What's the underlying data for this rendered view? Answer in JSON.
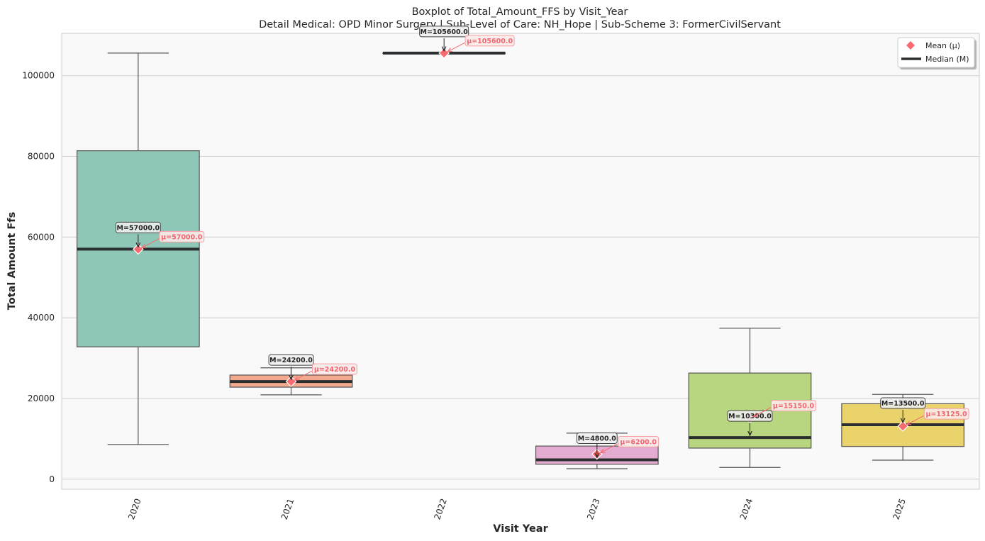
{
  "chart_data": {
    "type": "box",
    "title": "Boxplot of Total_Amount_FFS by Visit_Year",
    "subtitle": "Detail Medical: OPD Minor Surgery | Sub-Level of Care: NH_Hope | Sub-Scheme 3: FormerCivilServant",
    "xlabel": "Visit Year",
    "ylabel": "Total Amount Ffs",
    "ylim": [
      -2500,
      110500
    ],
    "yticks": [
      0,
      20000,
      40000,
      60000,
      80000,
      100000
    ],
    "ytick_labels": [
      "0",
      "20000",
      "40000",
      "60000",
      "80000",
      "100000"
    ],
    "grid": true,
    "legend_position": "top-right",
    "legend": {
      "mean_label": "Mean (μ)",
      "median_label": "Median (M)"
    },
    "series": [
      {
        "category": "2020",
        "color": "#8ec7b7",
        "whisker_low": 8600,
        "q1": 32800,
        "median": 57000,
        "q3": 81400,
        "whisker_high": 105600,
        "mean": 57000,
        "median_label": "M=57000.0",
        "mean_label": "μ=57000.0"
      },
      {
        "category": "2021",
        "color": "#f3a98d",
        "whisker_low": 20900,
        "q1": 22800,
        "median": 24200,
        "q3": 25800,
        "whisker_high": 27600,
        "mean": 24200,
        "median_label": "M=24200.0",
        "mean_label": "μ=24200.0"
      },
      {
        "category": "2022",
        "color": "#a3b3d6",
        "whisker_low": 105600,
        "q1": 105600,
        "median": 105600,
        "q3": 105600,
        "whisker_high": 105600,
        "mean": 105600,
        "median_label": "M=105600.0",
        "mean_label": "μ=105600.0"
      },
      {
        "category": "2023",
        "color": "#e4abd1",
        "whisker_low": 2600,
        "q1": 3700,
        "median": 4800,
        "q3": 8200,
        "whisker_high": 11400,
        "mean": 6200,
        "median_label": "M=4800.0",
        "mean_label": "μ=6200.0"
      },
      {
        "category": "2024",
        "color": "#b7d67f",
        "whisker_low": 2900,
        "q1": 7700,
        "median": 10300,
        "q3": 26300,
        "whisker_high": 37400,
        "mean": 15150,
        "median_label": "M=10300.0",
        "mean_label": "μ=15150.0"
      },
      {
        "category": "2025",
        "color": "#e9d36a",
        "whisker_low": 4700,
        "q1": 8100,
        "median": 13500,
        "q3": 18700,
        "whisker_high": 21000,
        "mean": 13125,
        "median_label": "M=13500.0",
        "mean_label": "μ=13125.0"
      }
    ],
    "colors": {
      "mean_marker": "#f56b6f",
      "median_line": "#2b2f30",
      "plot_bg": "#f9f9f9",
      "grid": "#cfcfcf"
    }
  }
}
